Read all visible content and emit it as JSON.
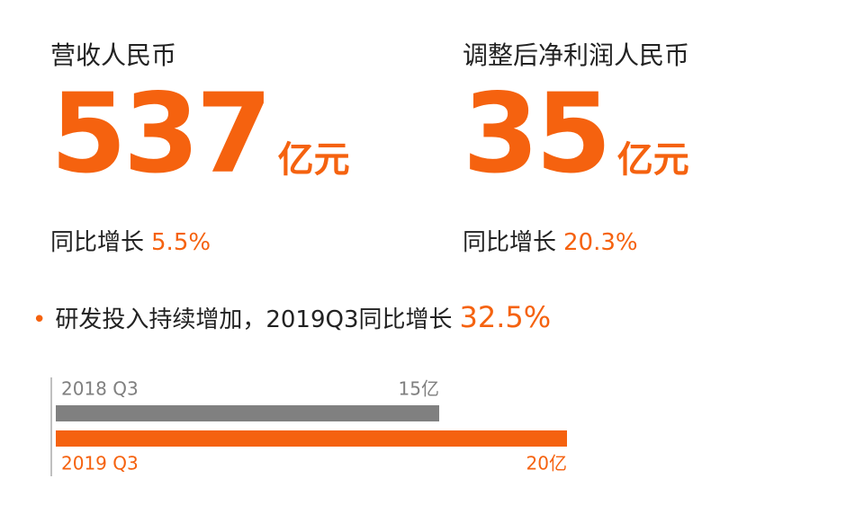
{
  "kpis": [
    {
      "title": "营收人民币",
      "value": "537",
      "unit": "亿元",
      "growth_label": "同比增长",
      "growth": "5.5%"
    },
    {
      "title": "调整后净利润人民币",
      "value": "35",
      "unit": "亿元",
      "growth_label": "同比增长",
      "growth": "20.3%"
    }
  ],
  "rd": {
    "text": "研发投入持续增加，2019Q3同比增长",
    "highlight": "32.5%",
    "bars": [
      {
        "label": "2018 Q3",
        "value": 15,
        "value_label": "15亿",
        "color": "#808080"
      },
      {
        "label": "2019 Q3",
        "value": 20,
        "value_label": "20亿",
        "color": "#f5620f"
      }
    ]
  }
}
